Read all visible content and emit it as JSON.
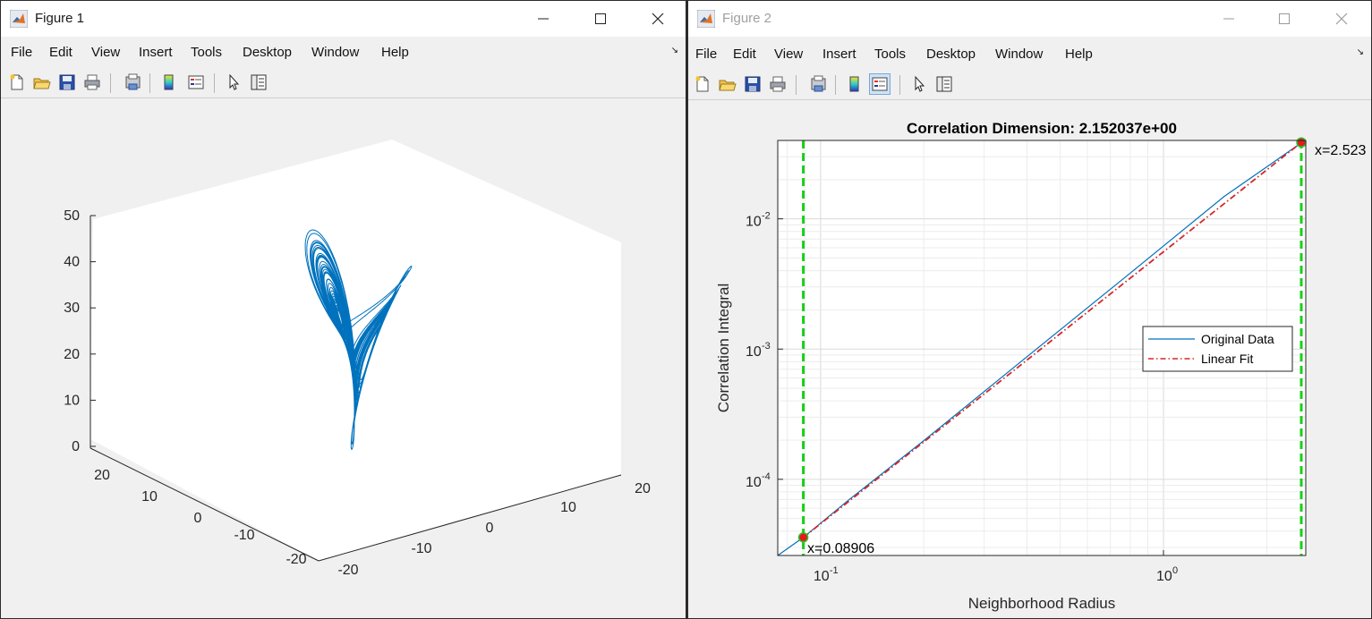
{
  "figure1": {
    "title": "Figure 1",
    "menu": [
      "File",
      "Edit",
      "View",
      "Insert",
      "Tools",
      "Desktop",
      "Window",
      "Help"
    ],
    "toolbar_icons": [
      "new-file-icon",
      "open-folder-icon",
      "save-icon",
      "print-icon",
      "print-preview-icon",
      "insert-colorbar-icon",
      "insert-legend-icon",
      "edit-plot-cursor-icon",
      "property-inspector-icon"
    ],
    "plot": {
      "z_ticks": [
        "0",
        "10",
        "20",
        "30",
        "40",
        "50"
      ],
      "y_ticks": [
        "-20",
        "-10",
        "0",
        "10",
        "20"
      ],
      "x_ticks": [
        "-20",
        "-10",
        "0",
        "10",
        "20"
      ]
    }
  },
  "figure2": {
    "title": "Figure 2",
    "menu": [
      "File",
      "Edit",
      "View",
      "Insert",
      "Tools",
      "Desktop",
      "Window",
      "Help"
    ],
    "toolbar_icons": [
      "new-file-icon",
      "open-folder-icon",
      "save-icon",
      "print-icon",
      "print-preview-icon",
      "insert-colorbar-icon",
      "insert-legend-icon",
      "edit-plot-cursor-icon",
      "property-inspector-icon"
    ],
    "annotation_left": "x=0.08906",
    "annotation_right": "x=2.523"
  },
  "chart_data": {
    "type": "line",
    "title": "Correlation Dimension: 2.152037e+00",
    "xlabel": "Neighborhood Radius",
    "ylabel": "Correlation Integral",
    "xscale": "log",
    "yscale": "log",
    "xlim": [
      0.075,
      2.6
    ],
    "ylim": [
      2.6e-05,
      0.04
    ],
    "x_ticks": [
      {
        "value": 0.1,
        "label": "10",
        "exp": "-1"
      },
      {
        "value": 1,
        "label": "10",
        "exp": "0"
      }
    ],
    "y_ticks": [
      {
        "value": 0.0001,
        "label": "10",
        "exp": "-4"
      },
      {
        "value": 0.001,
        "label": "10",
        "exp": "-3"
      },
      {
        "value": 0.01,
        "label": "10",
        "exp": "-2"
      }
    ],
    "grid": true,
    "legend_position": "right",
    "series": [
      {
        "name": "Original Data",
        "color": "#0072bd",
        "style": "solid",
        "x": [
          0.075,
          0.08906,
          0.12,
          0.2,
          0.4,
          0.8,
          1.5,
          2.523
        ],
        "y": [
          2.6e-05,
          3.58e-05,
          6.84e-05,
          0.000198,
          0.000873,
          0.00383,
          0.0148,
          0.0384
        ]
      },
      {
        "name": "Linear Fit",
        "color": "#d62728",
        "style": "dashdot",
        "x": [
          0.08906,
          2.523
        ],
        "y": [
          3.58e-05,
          0.0386
        ]
      }
    ],
    "markers": [
      {
        "x": 0.08906,
        "y": 3.58e-05
      },
      {
        "x": 2.523,
        "y": 0.0386
      }
    ],
    "vlines": [
      0.08906,
      2.523
    ],
    "vline_color": "#18d018"
  }
}
